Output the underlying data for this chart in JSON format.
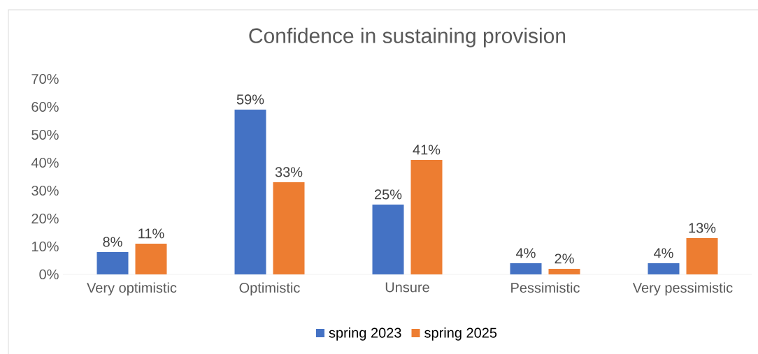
{
  "chart_data": {
    "type": "bar",
    "title": "Confidence in sustaining provision",
    "categories": [
      "Very optimistic",
      "Optimistic",
      "Unsure",
      "Pessimistic",
      "Very pessimistic"
    ],
    "series": [
      {
        "name": "spring 2023",
        "color": "#4472c4",
        "values": [
          8,
          59,
          25,
          4,
          4
        ],
        "value_labels": [
          "8%",
          "59%",
          "25%",
          "4%",
          "4%"
        ]
      },
      {
        "name": "spring 2025",
        "color": "#ed7d31",
        "values": [
          11,
          33,
          41,
          2,
          13
        ],
        "value_labels": [
          "11%",
          "33%",
          "41%",
          "2%",
          "13%"
        ]
      }
    ],
    "ylim": [
      0,
      70
    ],
    "yticks": [
      {
        "value": 0,
        "label": "0%"
      },
      {
        "value": 10,
        "label": "10%"
      },
      {
        "value": 20,
        "label": "20%"
      },
      {
        "value": 30,
        "label": "30%"
      },
      {
        "value": 40,
        "label": "40%"
      },
      {
        "value": 50,
        "label": "50%"
      },
      {
        "value": 60,
        "label": "60%"
      },
      {
        "value": 70,
        "label": "70%"
      }
    ],
    "grid": false,
    "legend": "bottom"
  }
}
